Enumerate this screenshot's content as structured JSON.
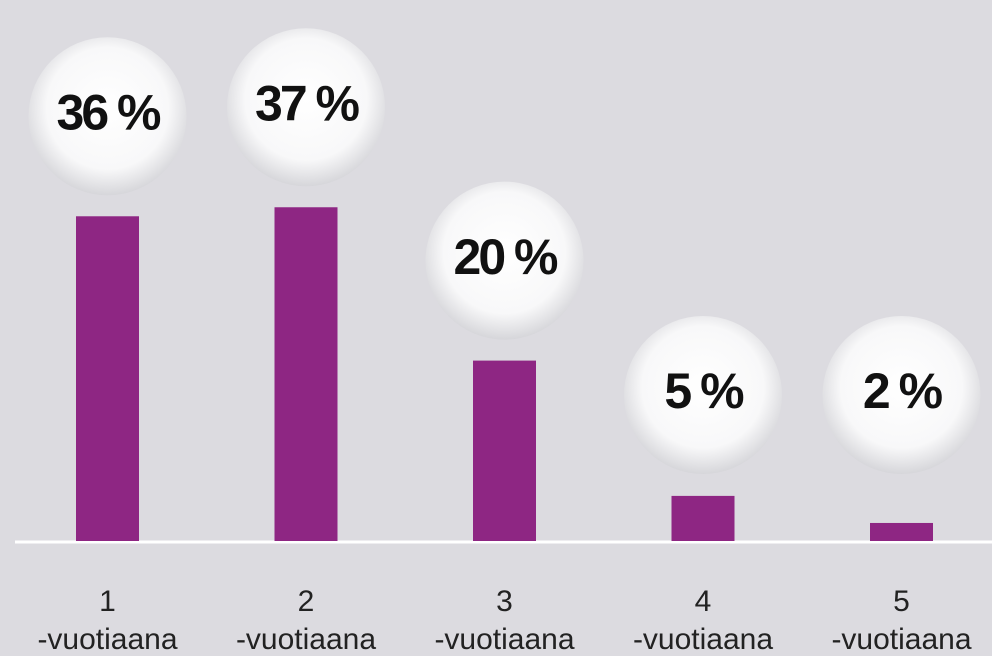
{
  "chart_data": {
    "type": "bar",
    "categories": [
      "1",
      "2",
      "3",
      "4",
      "5"
    ],
    "category_suffix": "-vuotiaana",
    "values": [
      36,
      37,
      20,
      5,
      2
    ],
    "value_labels": [
      "36 %",
      "37 %",
      "20 %",
      "5 %",
      "2 %"
    ],
    "color": "#8e2683",
    "ylim": [
      0,
      50
    ]
  }
}
